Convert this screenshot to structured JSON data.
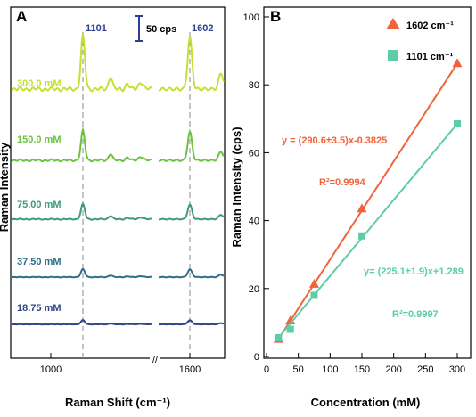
{
  "chart_data": [
    {
      "panel": "A",
      "type": "line",
      "xlabel": "Raman Shift (cm⁻¹)",
      "ylabel": "Raman Intensity",
      "x_ticks": [
        "1000",
        "1600"
      ],
      "axis_break": "//",
      "scale_bar_label": "50 cps",
      "peaks": [
        {
          "label": "1101",
          "x": 1101
        },
        {
          "label": "1602",
          "x": 1602
        }
      ],
      "spectra": [
        {
          "label": "300.0 mM",
          "color": "#c5e031",
          "scale": 1.0
        },
        {
          "label": "150.0 mM",
          "color": "#6dc242",
          "scale": 0.55
        },
        {
          "label": "75.00 mM",
          "color": "#3e9a7a",
          "scale": 0.28
        },
        {
          "label": "37.50 mM",
          "color": "#2f6e86",
          "scale": 0.15
        },
        {
          "label": "18.75 mM",
          "color": "#2f4585",
          "scale": 0.08
        }
      ]
    },
    {
      "panel": "B",
      "type": "scatter",
      "xlabel": "Concentration (mM)",
      "ylabel": "Raman Intensity (cps)",
      "xlim": [
        0,
        310
      ],
      "ylim": [
        0,
        100
      ],
      "x_ticks": [
        0,
        50,
        100,
        150,
        200,
        250,
        300
      ],
      "y_ticks": [
        0,
        20,
        40,
        60,
        80,
        100
      ],
      "series": [
        {
          "name": "1602 cm⁻¹",
          "color": "#f0643c",
          "marker": "triangle",
          "x": [
            18.75,
            37.5,
            75,
            150,
            300
          ],
          "y": [
            5.1,
            10.5,
            21.3,
            43.5,
            86.3
          ],
          "fit": {
            "slope": 290.6,
            "intercept": -0.3825
          },
          "equation": "y = (290.6±3.5)x-0.3825",
          "r2_label": "R²=0.9994"
        },
        {
          "name": "1101 cm⁻¹",
          "color": "#5ccda6",
          "marker": "square",
          "x": [
            18.75,
            37.5,
            75,
            150,
            300
          ],
          "y": [
            5.5,
            8.0,
            18.0,
            35.5,
            68.5
          ],
          "fit": {
            "slope": 225.1,
            "intercept": 1.289
          },
          "equation": "y= (225.1±1.9)x+1.289",
          "r2_label": "R²=0.9997"
        }
      ]
    }
  ]
}
